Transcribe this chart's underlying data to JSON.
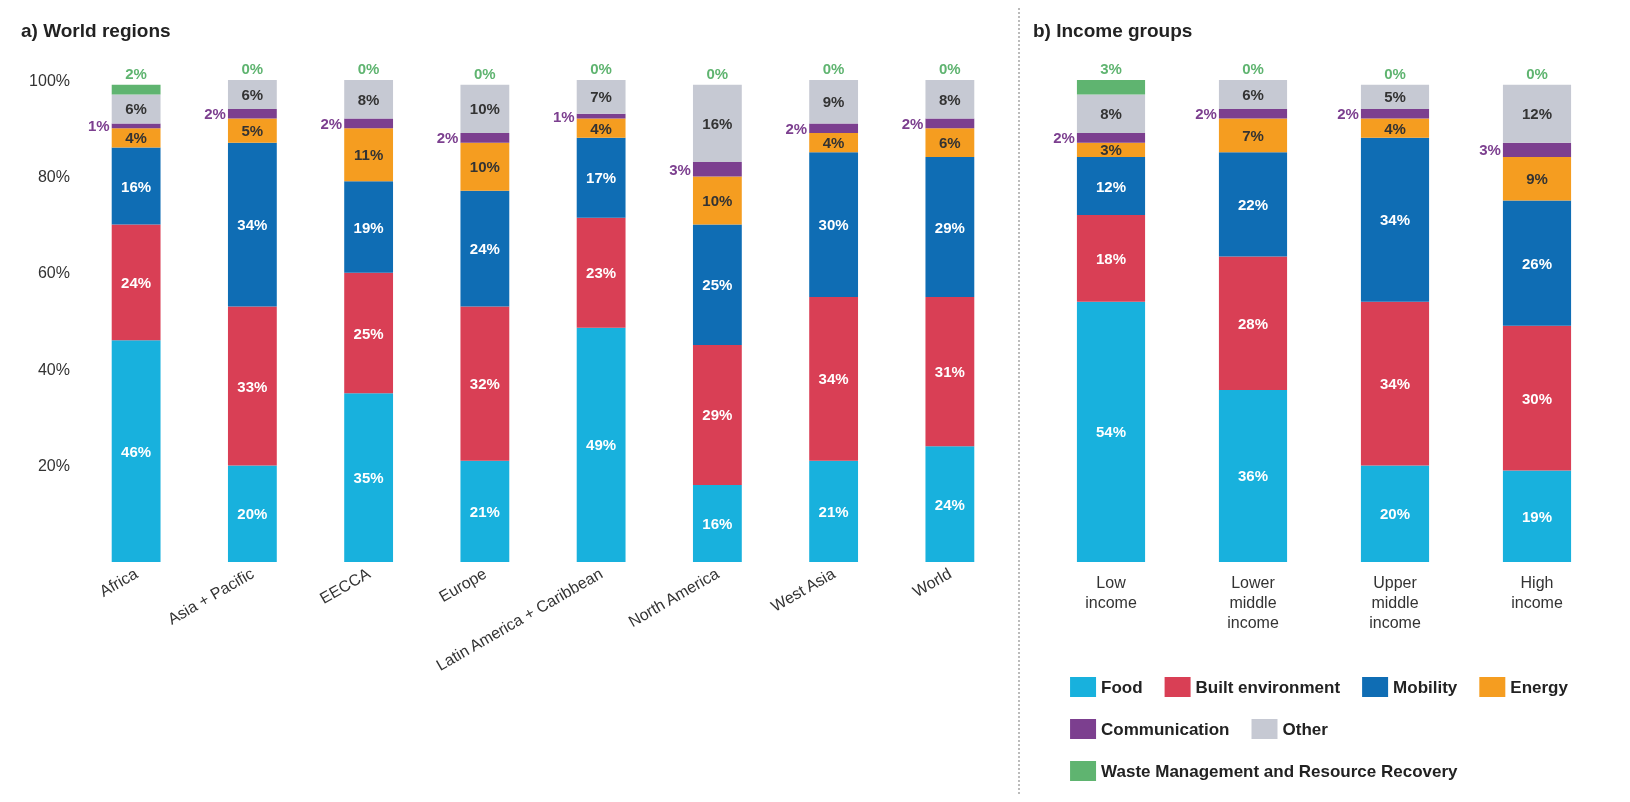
{
  "chart_data": [
    {
      "type": "bar",
      "title": "a) World regions",
      "stacked": true,
      "categories": [
        "Africa",
        "Asia + Pacific",
        "EECCA",
        "Europe",
        "Latin America + Caribbean",
        "North America",
        "West Asia",
        "World"
      ],
      "ylim": [
        0,
        100
      ],
      "yticks": [
        {
          "value": 20,
          "label": "20%"
        },
        {
          "value": 40,
          "label": "40%"
        },
        {
          "value": 60,
          "label": "60%"
        },
        {
          "value": 80,
          "label": "80%"
        },
        {
          "value": 100,
          "label": "100%"
        }
      ],
      "series": [
        {
          "color": "#18b1dd",
          "values": [
            46,
            20,
            35,
            21,
            48.6,
            16,
            21,
            24
          ],
          "value_labels": [
            "46%",
            "20%",
            "35%",
            "21%",
            "49%",
            "16%",
            "21%",
            "24%"
          ]
        },
        {
          "color": "#d93f55",
          "values": [
            24,
            33,
            25,
            32,
            22.8,
            29,
            34,
            31
          ],
          "value_labels": [
            "24%",
            "33%",
            "25%",
            "32%",
            "23%",
            "29%",
            "34%",
            "31%"
          ]
        },
        {
          "color": "#0f6db4",
          "values": [
            16,
            34,
            19,
            24,
            16.6,
            25,
            30,
            29
          ],
          "value_labels": [
            "16%",
            "34%",
            "19%",
            "24%",
            "17%",
            "25%",
            "30%",
            "29%"
          ]
        },
        {
          "color": "#f59d20",
          "values": [
            4,
            5,
            11,
            10,
            4,
            10,
            4,
            6
          ],
          "value_labels": [
            "4%",
            "5%",
            "11%",
            "10%",
            "4%",
            "10%",
            "4%",
            "6%"
          ]
        },
        {
          "color": "#7c3f8f",
          "values": [
            1,
            2,
            2,
            2,
            1,
            3,
            2,
            2
          ],
          "value_labels": [
            "1%",
            "2%",
            "2%",
            "2%",
            "1%",
            "3%",
            "2%",
            "2%"
          ]
        },
        {
          "color": "#c6c9d3",
          "values": [
            6,
            6,
            8,
            10,
            7,
            16,
            9,
            8
          ],
          "value_labels": [
            "6%",
            "6%",
            "8%",
            "10%",
            "7%",
            "16%",
            "9%",
            "8%"
          ]
        },
        {
          "color": "#5fb470",
          "values": [
            2,
            0,
            0,
            0,
            0,
            0,
            0,
            0
          ],
          "value_labels": [
            "2%",
            "0%",
            "0%",
            "0%",
            "0%",
            "0%",
            "0%",
            "0%"
          ]
        }
      ]
    },
    {
      "type": "bar",
      "title": "b) Income groups",
      "stacked": true,
      "tick_labels": "x",
      "legend": "bottom",
      "categories": [
        "Low\nincome",
        "Lower\nmiddle\nincome",
        "Upper\nmiddle\nincome",
        "High\nincome"
      ],
      "ylim": [
        0,
        100
      ],
      "series": [
        {
          "name": "Food",
          "color": "#18b1dd",
          "values": [
            54,
            35.7,
            20,
            19
          ],
          "value_labels": [
            "54%",
            "36%",
            "20%",
            "19%"
          ]
        },
        {
          "name": "Built environment",
          "color": "#d93f55",
          "values": [
            18,
            27.7,
            34,
            30
          ],
          "value_labels": [
            "18%",
            "28%",
            "34%",
            "30%"
          ]
        },
        {
          "name": "Mobility",
          "color": "#0f6db4",
          "values": [
            12,
            21.6,
            34,
            26
          ],
          "value_labels": [
            "12%",
            "22%",
            "34%",
            "26%"
          ]
        },
        {
          "name": "Energy",
          "color": "#f59d20",
          "values": [
            3,
            7,
            4,
            9
          ],
          "value_labels": [
            "3%",
            "7%",
            "4%",
            "9%"
          ]
        },
        {
          "name": "Communication",
          "color": "#7c3f8f",
          "values": [
            2,
            2,
            2,
            3
          ],
          "value_labels": [
            "2%",
            "2%",
            "2%",
            "3%"
          ]
        },
        {
          "name": "Other",
          "color": "#c6c9d3",
          "values": [
            8,
            6,
            5,
            12
          ],
          "value_labels": [
            "8%",
            "6%",
            "5%",
            "12%"
          ]
        },
        {
          "name": "Waste Management and Resource Recovery",
          "color": "#5fb470",
          "values": [
            3,
            0,
            0,
            0
          ],
          "value_labels": [
            "3%",
            "0%",
            "0%",
            "0%"
          ]
        }
      ]
    }
  ]
}
